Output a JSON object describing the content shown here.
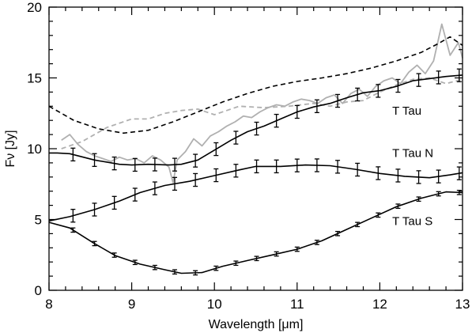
{
  "chart_data": {
    "type": "line",
    "title": "",
    "xlabel": "Wavelength [μm]",
    "ylabel": "Fν [Jy]",
    "xlim": [
      8,
      13
    ],
    "ylim": [
      0,
      20
    ],
    "x_ticks": [
      8,
      9,
      10,
      11,
      12,
      13
    ],
    "y_ticks": [
      0,
      5,
      10,
      15,
      20
    ],
    "x_tick_labels": [
      "8",
      "9",
      "10",
      "11",
      "12",
      "13"
    ],
    "y_tick_labels": [
      "0",
      "5",
      "10",
      "15",
      "20"
    ],
    "grid": false,
    "annotations": [
      {
        "text": "T Tau",
        "x": 12.15,
        "y": 12.4
      },
      {
        "text": "T Tau N",
        "x": 12.15,
        "y": 9.4
      },
      {
        "text": "T Tau S",
        "x": 12.15,
        "y": 4.6
      }
    ],
    "series": [
      {
        "style": "solid-errorbars",
        "color": "#000000",
        "x": [
          8.0,
          8.1,
          8.25,
          8.55,
          8.85,
          9.0,
          9.2,
          9.45,
          9.6,
          9.8,
          10.0,
          10.2,
          10.4,
          10.6,
          10.8,
          11.0,
          11.2,
          11.4,
          11.6,
          11.8,
          12.0,
          12.2,
          12.4,
          12.6,
          12.8,
          13.0
        ],
        "y": [
          9.7,
          9.7,
          9.65,
          9.2,
          8.9,
          8.85,
          8.9,
          8.85,
          8.9,
          9.2,
          9.9,
          10.6,
          11.2,
          11.6,
          12.1,
          12.6,
          12.95,
          13.2,
          13.6,
          13.95,
          14.1,
          14.4,
          14.8,
          14.95,
          15.1,
          15.2
        ],
        "err_x": [
          8.29,
          8.55,
          8.79,
          9.04,
          9.28,
          9.52,
          9.77,
          10.02,
          10.26,
          10.51,
          10.75,
          11.0,
          11.24,
          11.49,
          11.73,
          11.98,
          12.22,
          12.47,
          12.71,
          12.96
        ],
        "err": 0.45
      },
      {
        "style": "solid-errorbars",
        "color": "#000000",
        "x": [
          8.0,
          8.25,
          8.55,
          8.85,
          9.1,
          9.4,
          9.7,
          10.0,
          10.3,
          10.5,
          10.8,
          11.1,
          11.4,
          11.7,
          12.0,
          12.3,
          12.6,
          12.85,
          13.0
        ],
        "y": [
          4.9,
          5.2,
          5.7,
          6.3,
          6.9,
          7.4,
          7.7,
          8.1,
          8.5,
          8.75,
          8.75,
          8.85,
          8.8,
          8.55,
          8.25,
          8.05,
          7.95,
          8.15,
          8.3
        ],
        "err_x": [
          8.29,
          8.55,
          8.79,
          9.04,
          9.28,
          9.52,
          9.77,
          10.02,
          10.26,
          10.51,
          10.75,
          11.0,
          11.24,
          11.49,
          11.73,
          11.98,
          12.22,
          12.47,
          12.71,
          12.96
        ],
        "err": 0.45
      },
      {
        "style": "solid-errorbars",
        "color": "#000000",
        "x": [
          8.0,
          8.25,
          8.55,
          8.8,
          9.1,
          9.4,
          9.6,
          9.85,
          10.1,
          10.4,
          10.7,
          11.0,
          11.3,
          11.6,
          11.9,
          12.2,
          12.5,
          12.8,
          13.0
        ],
        "y": [
          4.8,
          4.4,
          3.3,
          2.45,
          1.85,
          1.45,
          1.2,
          1.25,
          1.7,
          2.1,
          2.5,
          2.9,
          3.5,
          4.3,
          5.1,
          5.9,
          6.5,
          6.95,
          6.9
        ],
        "err_x": [
          8.29,
          8.55,
          8.79,
          9.04,
          9.28,
          9.52,
          9.77,
          10.02,
          10.26,
          10.51,
          10.75,
          11.0,
          11.24,
          11.49,
          11.73,
          11.98,
          12.22,
          12.47,
          12.71,
          12.96
        ],
        "err": 0.15
      },
      {
        "style": "dashed",
        "color": "#000000",
        "x": [
          8.0,
          8.3,
          8.6,
          8.9,
          9.2,
          9.5,
          9.8,
          10.1,
          10.4,
          10.7,
          11.0,
          11.3,
          11.6,
          11.9,
          12.2,
          12.5,
          12.7,
          12.85,
          13.0
        ],
        "y": [
          13.0,
          12.0,
          11.4,
          11.1,
          11.3,
          11.9,
          12.6,
          13.3,
          13.9,
          14.4,
          14.75,
          15.0,
          15.3,
          15.7,
          16.2,
          16.8,
          17.4,
          17.9,
          17.3
        ],
        "err_x": [],
        "err": 0
      },
      {
        "style": "dashed",
        "color": "#b0b0b0",
        "x": [
          8.15,
          8.4,
          8.7,
          9.0,
          9.2,
          9.4,
          9.6,
          9.8,
          10.0,
          10.3,
          10.6,
          10.9,
          11.2,
          11.4,
          11.6,
          11.8,
          12.0,
          12.2,
          12.4,
          12.6,
          12.8,
          13.0
        ],
        "y": [
          10.0,
          10.5,
          11.5,
          12.1,
          12.1,
          12.5,
          12.7,
          12.8,
          12.4,
          13.0,
          12.9,
          13.0,
          13.2,
          13.0,
          13.3,
          13.4,
          14.0,
          14.5,
          14.9,
          15.0,
          14.6,
          14.9
        ],
        "err_x": [],
        "err": 0
      },
      {
        "style": "solid",
        "color": "#b0b0b0",
        "x": [
          8.15,
          8.25,
          8.35,
          8.45,
          8.55,
          8.65,
          8.75,
          8.85,
          8.95,
          9.05,
          9.15,
          9.25,
          9.35,
          9.45,
          9.5,
          9.55,
          9.65,
          9.75,
          9.85,
          9.95,
          10.05,
          10.15,
          10.25,
          10.35,
          10.45,
          10.55,
          10.65,
          10.75,
          10.85,
          10.95,
          11.05,
          11.15,
          11.25,
          11.35,
          11.45,
          11.55,
          11.65,
          11.75,
          11.85,
          11.95,
          12.05,
          12.15,
          12.25,
          12.35,
          12.45,
          12.55,
          12.65,
          12.75,
          12.85,
          12.95,
          13.0
        ],
        "y": [
          10.6,
          11.0,
          10.3,
          9.8,
          9.5,
          9.3,
          9.1,
          9.4,
          9.2,
          9.3,
          9.0,
          9.5,
          9.2,
          8.7,
          7.6,
          9.2,
          9.8,
          10.7,
          10.2,
          10.9,
          11.2,
          11.6,
          11.9,
          12.3,
          12.2,
          12.6,
          12.9,
          13.1,
          13.0,
          13.3,
          13.5,
          13.4,
          13.2,
          13.6,
          13.8,
          13.2,
          13.9,
          14.2,
          13.7,
          14.4,
          14.8,
          15.0,
          14.6,
          15.4,
          15.9,
          15.3,
          16.2,
          18.8,
          16.6,
          17.5,
          16.4
        ],
        "err_x": [],
        "err": 0
      }
    ]
  }
}
